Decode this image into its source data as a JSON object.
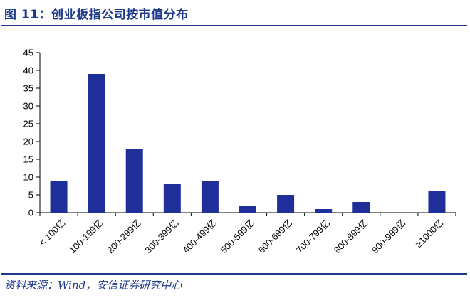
{
  "figure_title": "图 11：创业板指公司按市值分布",
  "source": "资料来源：Wind，安信证券研究中心",
  "colors": {
    "bar": "#1f2f9a",
    "accent": "#1f3a8a"
  },
  "chart_data": {
    "type": "bar",
    "categories": [
      "< 100亿",
      "100-199亿",
      "200-299亿",
      "300-399亿",
      "400-499亿",
      "500-599亿",
      "600-699亿",
      "700-799亿",
      "800-899亿",
      "900-999亿",
      "≥1000亿"
    ],
    "values": [
      9,
      39,
      18,
      8,
      9,
      2,
      5,
      1,
      3,
      0,
      6
    ],
    "ylim": [
      0,
      45
    ],
    "yticks": [
      0,
      5,
      10,
      15,
      20,
      25,
      30,
      35,
      40,
      45
    ],
    "grid": false,
    "legend": "none"
  }
}
